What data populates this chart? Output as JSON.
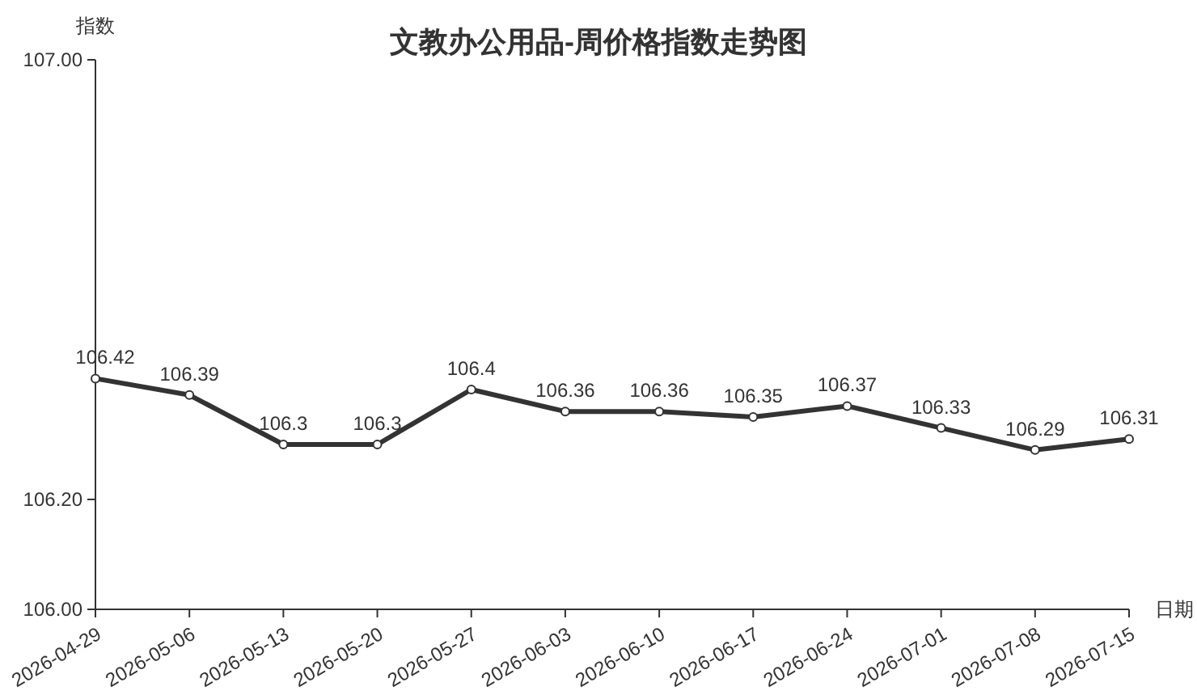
{
  "chart_data": {
    "type": "line",
    "title": "文教办公用品-周价格指数走势图",
    "ylabel": "指数",
    "xlabel": "日期",
    "categories": [
      "2026-04-29",
      "2026-05-06",
      "2026-05-13",
      "2026-05-20",
      "2026-05-27",
      "2026-06-03",
      "2026-06-10",
      "2026-06-17",
      "2026-06-24",
      "2026-07-01",
      "2026-07-08",
      "2026-07-15"
    ],
    "series": [
      {
        "color": "#333333",
        "values": [
          106.42,
          106.39,
          106.3,
          106.3,
          106.4,
          106.36,
          106.36,
          106.35,
          106.37,
          106.33,
          106.29,
          106.31
        ]
      }
    ],
    "ylim": [
      106,
      107
    ],
    "yticks": [
      {
        "value": 106,
        "label": "106.00"
      },
      {
        "value": 106.2,
        "label": "106.20"
      },
      {
        "value": 107,
        "label": "107.00"
      }
    ],
    "data_labels": true,
    "marker": "circle",
    "line_style": "solid",
    "grid": false
  }
}
